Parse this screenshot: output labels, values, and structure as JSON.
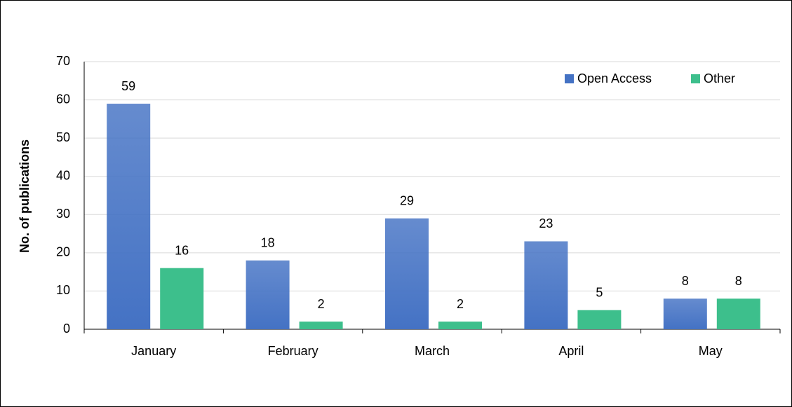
{
  "chart_data": {
    "type": "bar",
    "ylabel": "No. of publications",
    "categories": [
      "January",
      "February",
      "March",
      "April",
      "May"
    ],
    "series": [
      {
        "name": "Open Access",
        "color": "#4472c4",
        "values": [
          59,
          18,
          29,
          23,
          8
        ]
      },
      {
        "name": "Other",
        "color": "#3dbf8c",
        "values": [
          16,
          2,
          2,
          5,
          8
        ]
      }
    ],
    "ylim": [
      0,
      70
    ],
    "yticks": [
      0,
      10,
      20,
      30,
      40,
      50,
      60,
      70
    ],
    "grid": true,
    "legend": "upper right",
    "data_labels": true
  }
}
